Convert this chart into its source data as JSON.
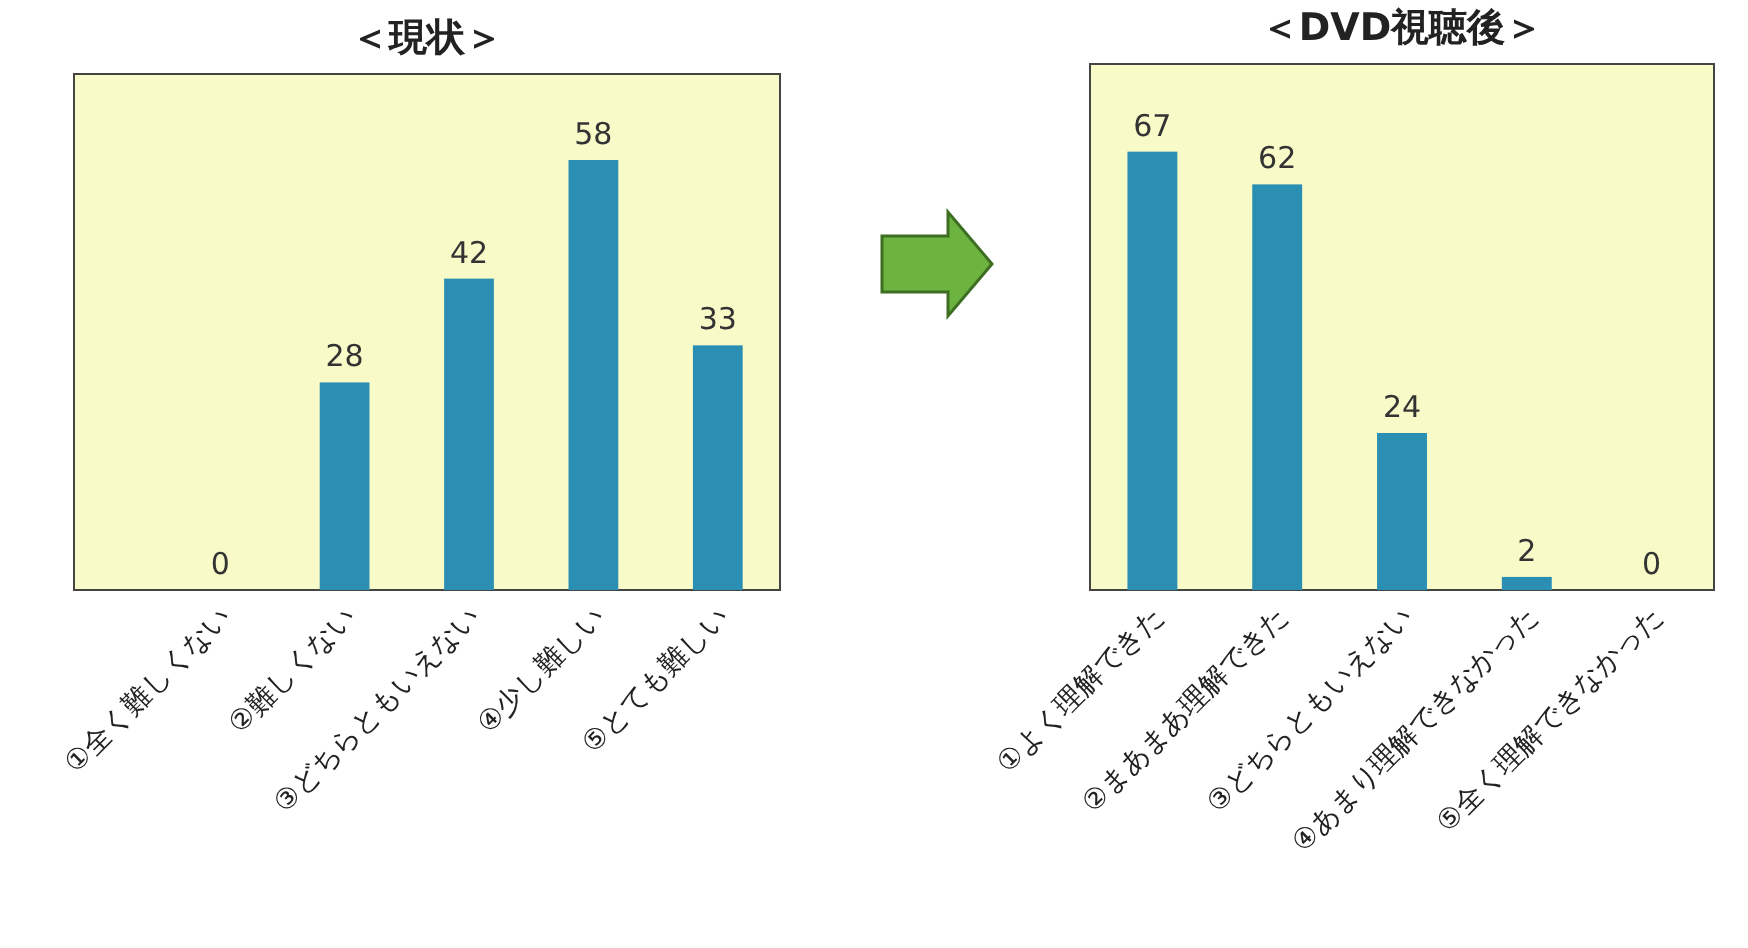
{
  "chart_data": [
    {
      "type": "bar",
      "title": "＜現状＞",
      "categories": [
        "①全く難しくない",
        "②難しくない",
        "③どちらともいえない",
        "④少し難しい",
        "⑤とても難しい"
      ],
      "values": [
        0,
        28,
        42,
        58,
        33
      ],
      "color": "#2b8fb3",
      "data_labels": true
    },
    {
      "type": "bar",
      "title": "＜DVD視聴後＞",
      "categories": [
        "①よく理解できた",
        "②まあまあ理解できた",
        "③どちらともいえない",
        "④あまり理解できなかった",
        "⑤全く理解できなかった"
      ],
      "values": [
        67,
        62,
        24,
        2,
        0
      ],
      "color": "#2b8fb3",
      "data_labels": true
    }
  ]
}
